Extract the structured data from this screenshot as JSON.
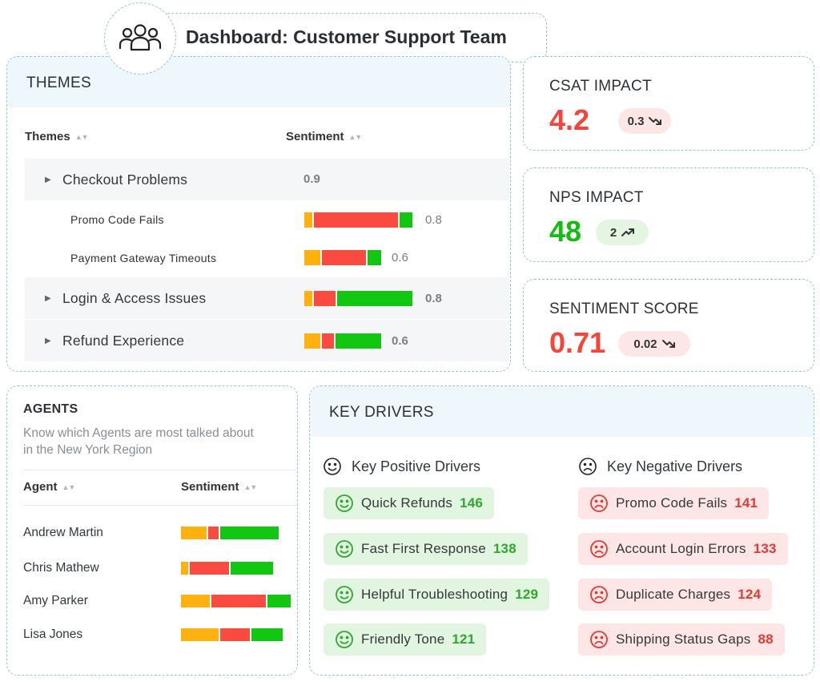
{
  "header": {
    "title": "Dashboard: Customer Support Team",
    "icon": "users-icon"
  },
  "themes": {
    "title": "THEMES",
    "columns": {
      "theme": "Themes",
      "sentiment": "Sentiment"
    },
    "rows": [
      {
        "label": "Checkout Problems",
        "value": "0.9",
        "expandable": true
      },
      {
        "label": "Promo Code Fails",
        "value": "0.8",
        "bar": [
          0.08,
          0.8,
          0.12
        ]
      },
      {
        "label": "Payment Gateway Timeouts",
        "value": "0.6",
        "bar": [
          0.22,
          0.6,
          0.18
        ]
      },
      {
        "label": "Login & Access Issues",
        "value": "0.8",
        "expandable": true,
        "bar": [
          0.08,
          0.2,
          0.72
        ]
      },
      {
        "label": "Refund Experience",
        "value": "0.6",
        "expandable": true,
        "bar": [
          0.22,
          0.16,
          0.62
        ]
      }
    ]
  },
  "metrics": [
    {
      "title": "CSAT IMPACT",
      "value": "4.2",
      "change": "0.3",
      "trend": "down",
      "color": "#f5443b"
    },
    {
      "title": "NPS IMPACT",
      "value": "48",
      "change": "2",
      "trend": "up",
      "color": "#13bb13"
    },
    {
      "title": "SENTIMENT SCORE",
      "value": "0.71",
      "change": "0.02",
      "trend": "down",
      "color": "#f5443b"
    }
  ],
  "agents": {
    "title": "AGENTS",
    "description": "Know which Agents are most talked about in the New York Region",
    "columns": {
      "agent": "Agent",
      "sentiment": "Sentiment"
    },
    "rows": [
      {
        "name": "Andrew Martin",
        "bar": [
          0.27,
          0.11,
          0.62
        ]
      },
      {
        "name": "Chris Mathew",
        "bar": [
          0.08,
          0.44,
          0.48
        ]
      },
      {
        "name": "Amy Parker",
        "bar": [
          0.27,
          0.51,
          0.22
        ]
      },
      {
        "name": "Lisa Jones",
        "bar": [
          0.38,
          0.3,
          0.32
        ]
      }
    ]
  },
  "drivers": {
    "title": "KEY DRIVERS",
    "positive": {
      "title": "Key Positive Drivers",
      "items": [
        {
          "label": "Quick Refunds",
          "count": "146"
        },
        {
          "label": "Fast First Response",
          "count": "138"
        },
        {
          "label": "Helpful Troubleshooting",
          "count": "129"
        },
        {
          "label": "Friendly Tone",
          "count": "121"
        }
      ]
    },
    "negative": {
      "title": "Key Negative Drivers",
      "items": [
        {
          "label": "Promo Code Fails",
          "count": "141"
        },
        {
          "label": "Account Login Errors",
          "count": "133"
        },
        {
          "label": "Duplicate Charges",
          "count": "124"
        },
        {
          "label": "Shipping Status Gaps",
          "count": "88"
        }
      ]
    }
  }
}
